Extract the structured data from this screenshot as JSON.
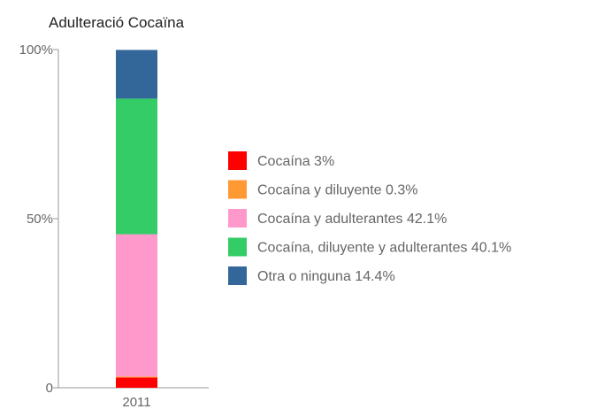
{
  "chart_data": {
    "type": "bar",
    "stacked": true,
    "title": "Adulteració Cocaïna",
    "categories": [
      "2011"
    ],
    "y_ticks": [
      "0",
      "50%",
      "100%"
    ],
    "ylim": [
      0,
      100
    ],
    "legend_position": "right",
    "series": [
      {
        "name": "Cocaína 3%",
        "values": [
          3
        ],
        "color": "#ff0000"
      },
      {
        "name": "Cocaína y diluyente 0.3%",
        "values": [
          0.3
        ],
        "color": "#ff9933"
      },
      {
        "name": "Cocaína y adulterantes 42.1%",
        "values": [
          42.1
        ],
        "color": "#ff99cc"
      },
      {
        "name": "Cocaína, diluyente y adulterantes 40.1%",
        "values": [
          40.1
        ],
        "color": "#33cc66"
      },
      {
        "name": "Otra o ninguna 14.4%",
        "values": [
          14.4
        ],
        "color": "#336699"
      }
    ]
  }
}
